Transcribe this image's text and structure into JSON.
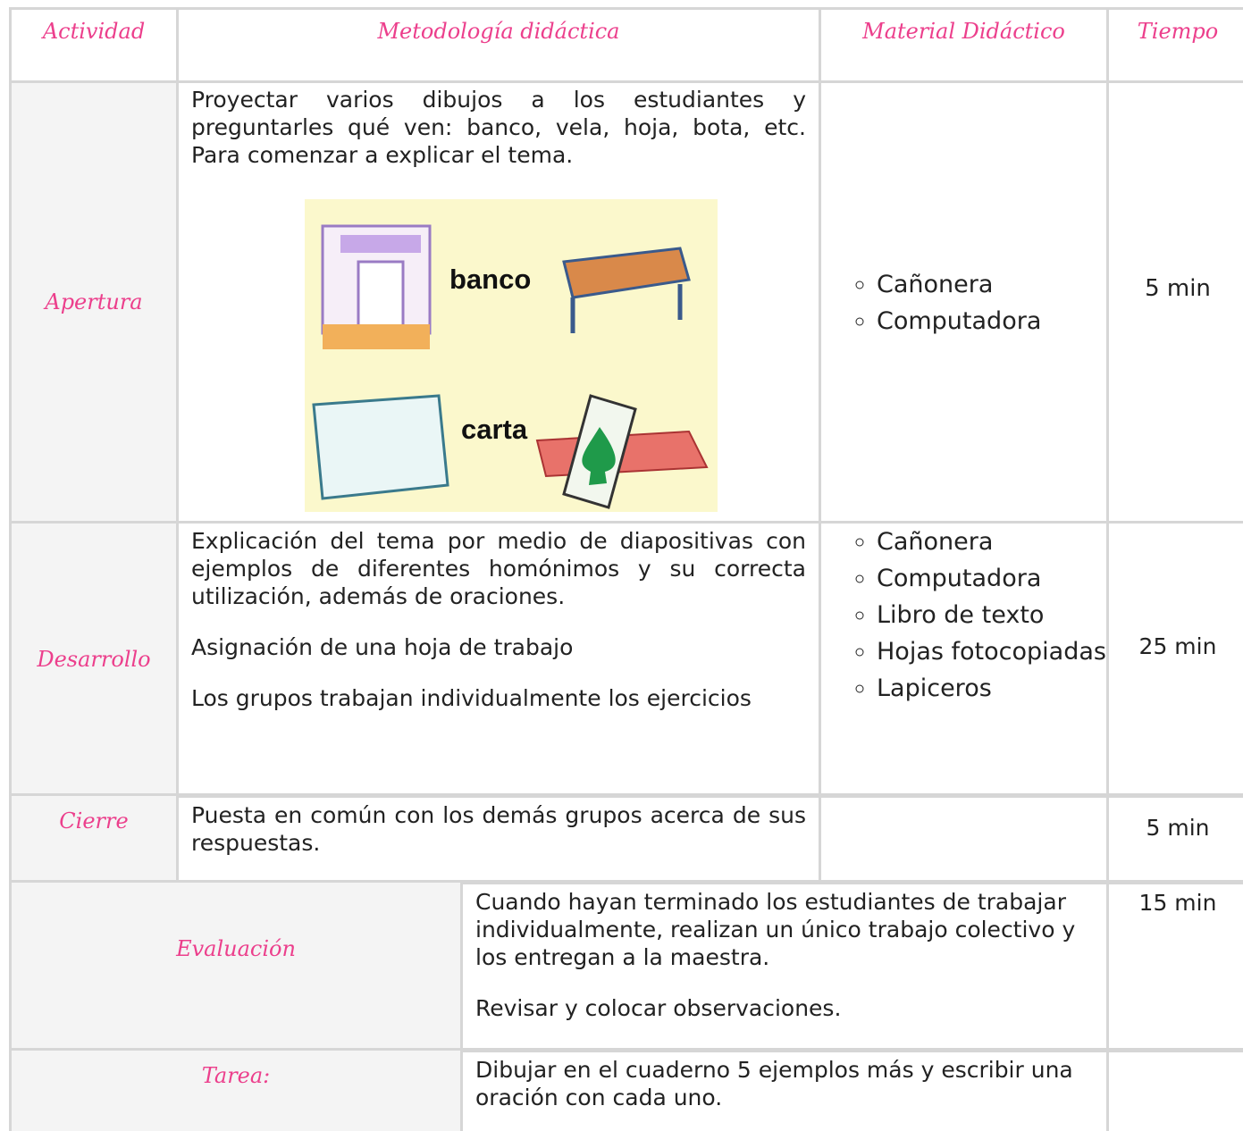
{
  "table": {
    "header": [
      "Actividad",
      "Metodología didáctica",
      "Material Didáctico",
      "Tiempo"
    ],
    "rows": [
      {
        "activity": "Apertura",
        "methodology": [
          "Proyectar varios dibujos a los estudiantes y preguntarles qué ven: banco, vela, hoja, bota, etc. Para comenzar a explicar el tema."
        ],
        "image_labels": [
          "banco",
          "carta"
        ],
        "materials": [
          "Cañonera",
          "Computadora"
        ],
        "time": "5 min"
      },
      {
        "activity": "Desarrollo",
        "methodology": [
          "Explicación del tema por medio de diapositivas con ejemplos de diferentes homónimos y su correcta utilización, además de oraciones.",
          "Asignación de una hoja de trabajo",
          "Los grupos trabajan individualmente los ejercicios"
        ],
        "materials": [
          "Cañonera",
          "Computadora",
          "Libro de texto",
          "Hojas fotocopiadas",
          "Lapiceros"
        ],
        "time": "25 min"
      },
      {
        "activity": "Cierre",
        "methodology": [
          "Puesta en común con los demás grupos acerca de sus respuestas."
        ],
        "time": "5 min"
      }
    ],
    "evaluation": {
      "label": "Evaluación",
      "text": [
        "Cuando hayan terminado los estudiantes de trabajar individualmente, realizan un único trabajo colectivo y los entregan a la maestra.",
        "Revisar y colocar observaciones."
      ],
      "time": "15 min"
    },
    "homework": {
      "label": "Tarea:",
      "text": [
        "Dibujar en el cuaderno 5 ejemplos más y escribir una oración con cada uno."
      ]
    }
  }
}
